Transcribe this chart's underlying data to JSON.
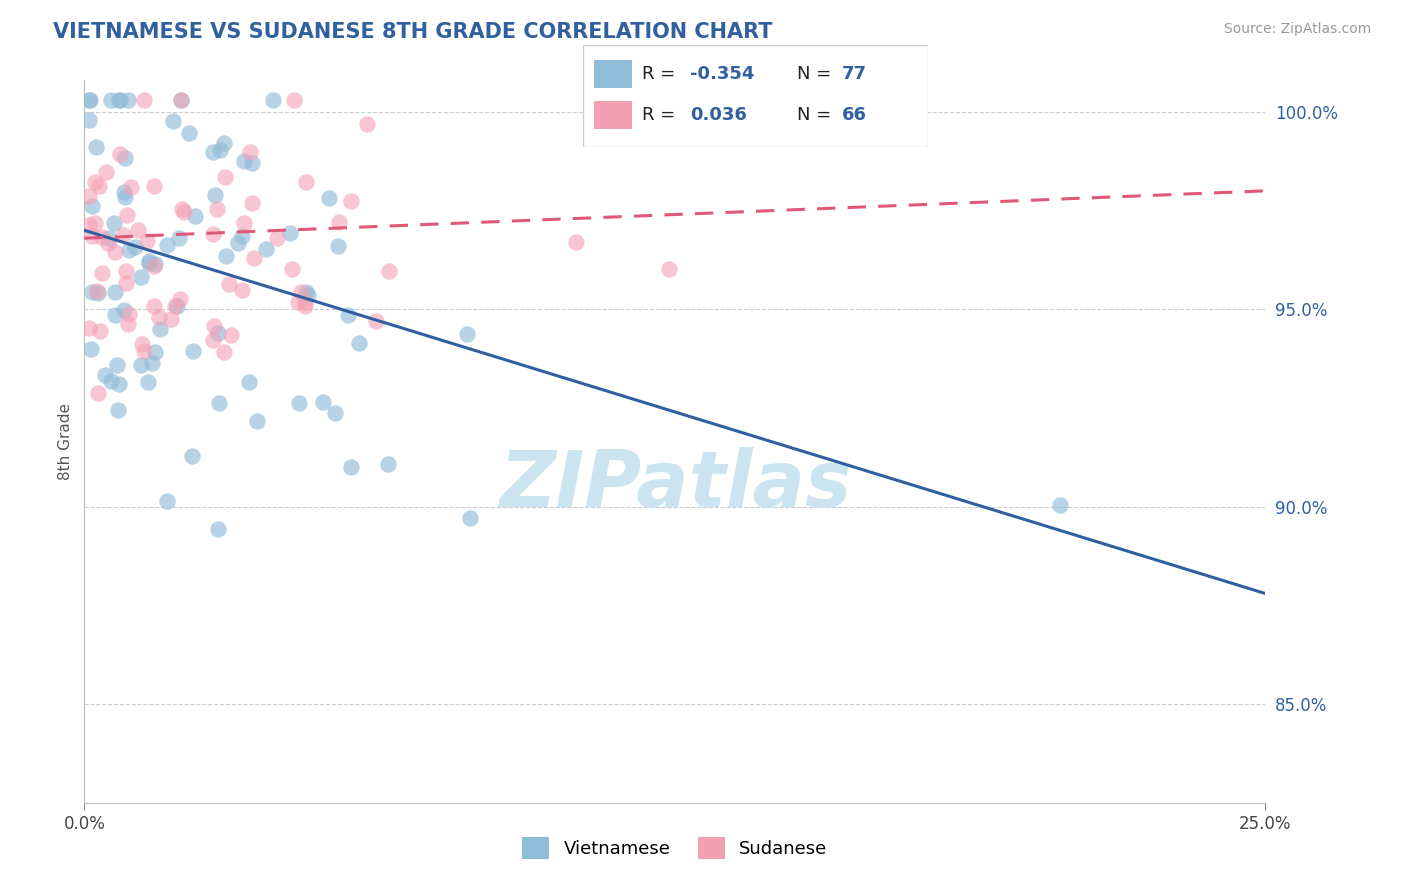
{
  "title": "VIETNAMESE VS SUDANESE 8TH GRADE CORRELATION CHART",
  "source_text": "Source: ZipAtlas.com",
  "ylabel": "8th Grade",
  "xlim": [
    0.0,
    0.25
  ],
  "ylim": [
    0.825,
    1.008
  ],
  "ytick_labels": [
    "85.0%",
    "90.0%",
    "95.0%",
    "100.0%"
  ],
  "ytick_vals": [
    0.85,
    0.9,
    0.95,
    1.0
  ],
  "blue_color": "#91bcd8",
  "pink_color": "#f4a0b4",
  "blue_line_color": "#3060a0",
  "pink_line_color": "#e05878",
  "title_color": "#3060a0",
  "source_color": "#999999",
  "watermark_color": "#cce4f0",
  "R_viet": -0.354,
  "N_viet": 77,
  "R_sud": 0.036,
  "N_sud": 66,
  "blue_line_y0": 0.97,
  "blue_line_y1": 0.878,
  "pink_line_y0": 0.968,
  "pink_line_y1": 0.98
}
